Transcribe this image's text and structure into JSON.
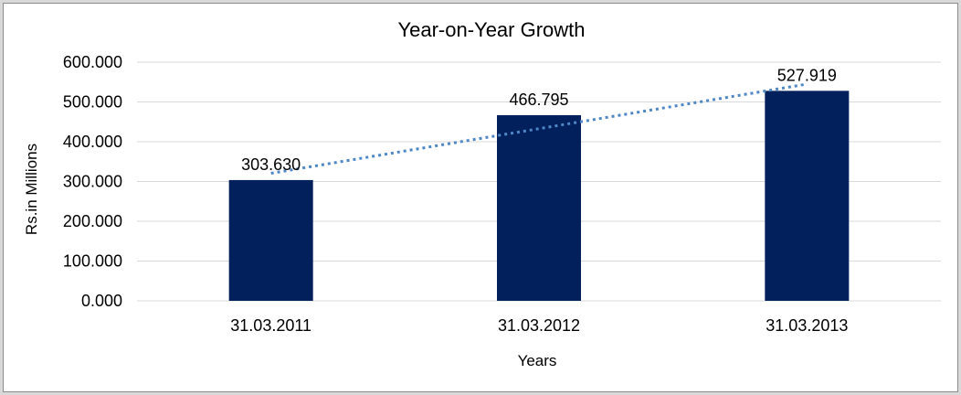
{
  "window": {
    "frame_background": "#D9D9D9",
    "frame_border_color": "#8C8C8C",
    "canvas_background": "#FFFFFF"
  },
  "chart_data": {
    "type": "bar",
    "title": "Year-on-Year Growth",
    "xlabel": "Years",
    "ylabel": "Rs.in Millions",
    "categories": [
      "31.03.2011",
      "31.03.2012",
      "31.03.2013"
    ],
    "values": [
      303.63,
      466.795,
      527.919
    ],
    "value_labels": [
      "303.630",
      "466.795",
      "527.919"
    ],
    "y_ticks": [
      "0.000",
      "100.000",
      "200.000",
      "300.000",
      "400.000",
      "500.000",
      "600.000"
    ],
    "ylim": [
      0,
      600
    ],
    "grid": true,
    "legend": "none",
    "bar_color": "#02215C",
    "gridline_color": "#D9D9D9",
    "text_color": "#000000",
    "trendline": {
      "type": "linear",
      "style": "dotted",
      "color": "#4F86C6"
    }
  }
}
